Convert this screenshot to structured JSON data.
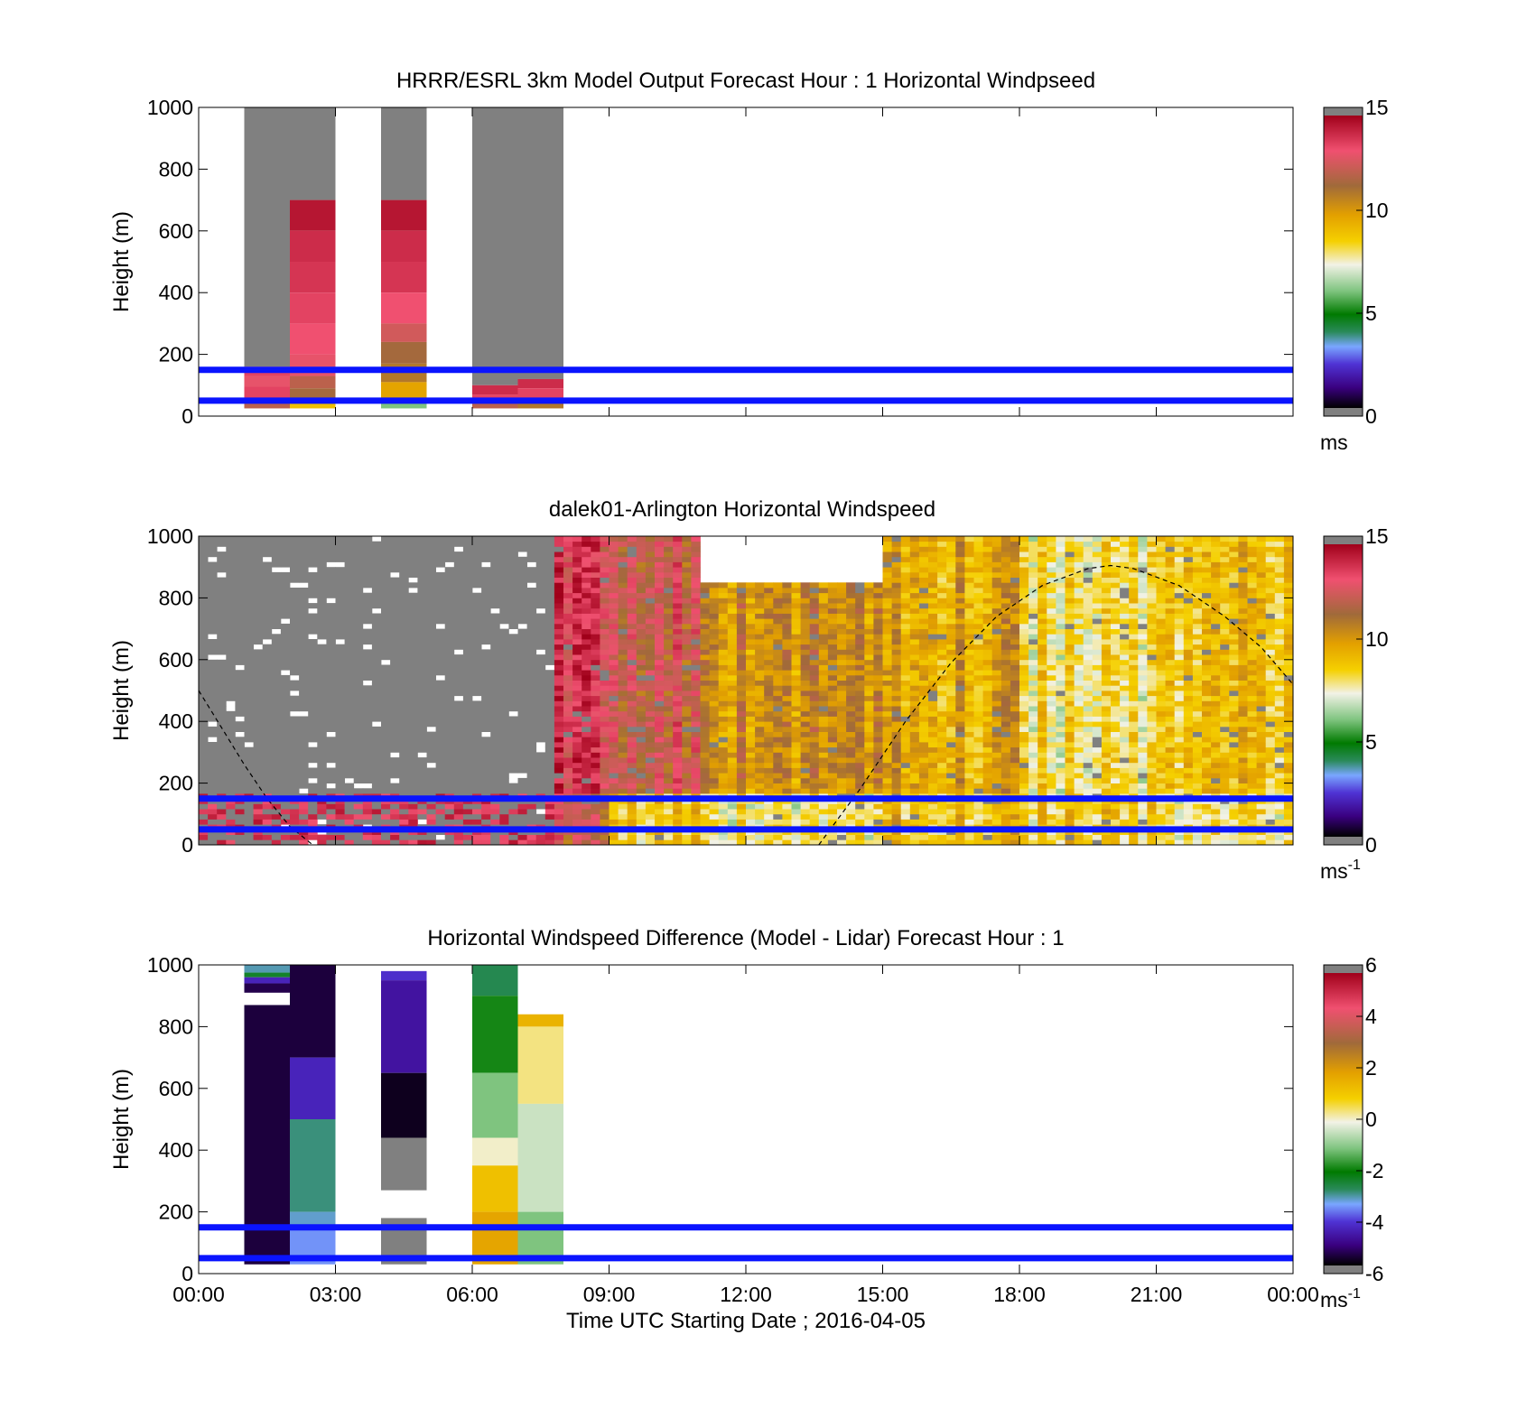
{
  "figure": {
    "xlabel": "Time UTC  Starting Date ; 2016-04-05",
    "xticks": [
      "00:00",
      "03:00",
      "06:00",
      "09:00",
      "12:00",
      "15:00",
      "18:00",
      "21:00",
      "00:00"
    ]
  },
  "chart_data": [
    {
      "type": "heatmap",
      "title": "HRRR/ESRL 3km Model Output   Forecast Hour : 1 Horizontal Windpseed",
      "ylabel": "Height (m)",
      "ylim": [
        0,
        1000
      ],
      "yticks": [
        0,
        200,
        400,
        600,
        800,
        1000
      ],
      "xlim_hours": [
        0,
        24
      ],
      "colorbar": {
        "range": [
          0,
          15
        ],
        "ticks": [
          0,
          5,
          10,
          15
        ],
        "unit": "ms",
        "unit_sup": ""
      },
      "reference_lines_m": [
        50,
        150
      ],
      "columns": [
        {
          "t0": 1.0,
          "t1": 2.0,
          "segments": [
            {
              "z0": 160,
              "z1": 1000,
              "v": "nodata"
            },
            {
              "z0": 130,
              "z1": 160,
              "v": 13.5
            },
            {
              "z0": 95,
              "z1": 130,
              "v": 13.0
            },
            {
              "z0": 55,
              "z1": 95,
              "v": 13.5
            },
            {
              "z0": 25,
              "z1": 55,
              "v": 12.0
            }
          ]
        },
        {
          "t0": 2.0,
          "t1": 3.0,
          "segments": [
            {
              "z0": 700,
              "z1": 1000,
              "v": "nodata"
            },
            {
              "z0": 600,
              "z1": 700,
              "v": 14.5
            },
            {
              "z0": 500,
              "z1": 600,
              "v": 14.0
            },
            {
              "z0": 400,
              "z1": 500,
              "v": 13.8
            },
            {
              "z0": 300,
              "z1": 400,
              "v": 13.5
            },
            {
              "z0": 200,
              "z1": 300,
              "v": 13.2
            },
            {
              "z0": 130,
              "z1": 200,
              "v": 13.0
            },
            {
              "z0": 90,
              "z1": 130,
              "v": 12.0
            },
            {
              "z0": 55,
              "z1": 90,
              "v": 11.5
            },
            {
              "z0": 25,
              "z1": 55,
              "v": 9.0
            }
          ]
        },
        {
          "t0": 4.0,
          "t1": 5.0,
          "segments": [
            {
              "z0": 700,
              "z1": 1000,
              "v": "nodata"
            },
            {
              "z0": 600,
              "z1": 700,
              "v": 14.5
            },
            {
              "z0": 500,
              "z1": 600,
              "v": 14.0
            },
            {
              "z0": 400,
              "z1": 500,
              "v": 13.8
            },
            {
              "z0": 300,
              "z1": 400,
              "v": 13.2
            },
            {
              "z0": 240,
              "z1": 300,
              "v": 12.5
            },
            {
              "z0": 170,
              "z1": 240,
              "v": 11.5
            },
            {
              "z0": 110,
              "z1": 170,
              "v": 11.0
            },
            {
              "z0": 55,
              "z1": 110,
              "v": 9.8
            },
            {
              "z0": 25,
              "z1": 55,
              "v": 6.0
            }
          ]
        },
        {
          "t0": 6.0,
          "t1": 7.0,
          "segments": [
            {
              "z0": 100,
              "z1": 1000,
              "v": "nodata"
            },
            {
              "z0": 70,
              "z1": 100,
              "v": 14.0
            },
            {
              "z0": 45,
              "z1": 70,
              "v": 13.5
            },
            {
              "z0": 25,
              "z1": 45,
              "v": 12.0
            }
          ]
        },
        {
          "t0": 7.0,
          "t1": 8.0,
          "segments": [
            {
              "z0": 120,
              "z1": 1000,
              "v": "nodata"
            },
            {
              "z0": 90,
              "z1": 120,
              "v": 14.0
            },
            {
              "z0": 55,
              "z1": 90,
              "v": 13.5
            },
            {
              "z0": 25,
              "z1": 55,
              "v": 11.0
            }
          ]
        }
      ]
    },
    {
      "type": "heatmap",
      "title": "dalek01-Arlington  Horizontal Windspeed",
      "ylabel": "Height (m)",
      "ylim": [
        0,
        1000
      ],
      "yticks": [
        0,
        200,
        400,
        600,
        800,
        1000
      ],
      "xlim_hours": [
        0,
        24
      ],
      "colorbar": {
        "range": [
          0,
          15
        ],
        "ticks": [
          0,
          5,
          10,
          15
        ],
        "unit": "ms",
        "unit_sup": "-1"
      },
      "reference_lines_m": [
        50,
        150
      ],
      "dashed_curves": [
        {
          "points": [
            [
              0.0,
              500
            ],
            [
              0.5,
              380
            ],
            [
              1.0,
              260
            ],
            [
              1.5,
              150
            ],
            [
              2.0,
              60
            ],
            [
              2.5,
              0
            ]
          ]
        },
        {
          "points": [
            [
              13.6,
              0
            ],
            [
              14.5,
              180
            ],
            [
              15.5,
              400
            ],
            [
              16.5,
              590
            ],
            [
              17.5,
              740
            ],
            [
              18.5,
              840
            ],
            [
              19.5,
              895
            ],
            [
              20.0,
              905
            ],
            [
              20.5,
              895
            ],
            [
              21.5,
              840
            ],
            [
              22.5,
              740
            ],
            [
              23.3,
              640
            ],
            [
              24.0,
              520
            ]
          ]
        }
      ],
      "time_series": [
        {
          "t0": 0.0,
          "t1": 7.8,
          "top_m": 1000,
          "base_ms": "nodata",
          "low_level_ms": 13.8
        },
        {
          "t0": 7.8,
          "t1": 9.0,
          "top_m": 1000,
          "base_ms": 13.5,
          "low_level_ms": 12.0
        },
        {
          "t0": 9.0,
          "t1": 11.0,
          "top_m": 1000,
          "base_ms": 12.5,
          "low_level_ms": 9.0
        },
        {
          "t0": 11.0,
          "t1": 15.0,
          "top_m": 850,
          "base_ms": 10.5,
          "low_level_ms": 8.0
        },
        {
          "t0": 15.0,
          "t1": 18.0,
          "top_m": 1000,
          "base_ms": 9.8,
          "low_level_ms": 9.0
        },
        {
          "t0": 18.0,
          "t1": 21.0,
          "top_m": 1000,
          "base_ms": 8.0,
          "low_level_ms": 8.5
        },
        {
          "t0": 21.0,
          "t1": 24.0,
          "top_m": 1000,
          "base_ms": 9.0,
          "low_level_ms": 8.0
        }
      ]
    },
    {
      "type": "heatmap",
      "title": "Horizontal Windspeed Difference (Model - Lidar) Forecast Hour : 1",
      "ylabel": "Height (m)",
      "ylim": [
        0,
        1000
      ],
      "yticks": [
        0,
        200,
        400,
        600,
        800,
        1000
      ],
      "xlim_hours": [
        0,
        24
      ],
      "colorbar": {
        "range": [
          -6,
          6
        ],
        "ticks": [
          -6,
          -4,
          -2,
          0,
          2,
          4,
          6
        ],
        "unit": "ms",
        "unit_sup": "-1"
      },
      "reference_lines_m": [
        50,
        150
      ],
      "columns": [
        {
          "t0": 1.0,
          "t1": 2.0,
          "segments": [
            {
              "z0": 975,
              "z1": 1000,
              "v": -3.2
            },
            {
              "z0": 960,
              "z1": 975,
              "v": -2.5
            },
            {
              "z0": 940,
              "z1": 960,
              "v": -4.5
            },
            {
              "z0": 910,
              "z1": 940,
              "v": -5.5
            },
            {
              "z0": 870,
              "z1": 910,
              "v": "blank"
            },
            {
              "z0": 30,
              "z1": 870,
              "v": -5.6
            }
          ]
        },
        {
          "t0": 2.0,
          "t1": 3.0,
          "segments": [
            {
              "z0": 700,
              "z1": 1000,
              "v": -5.6
            },
            {
              "z0": 500,
              "z1": 700,
              "v": -4.5
            },
            {
              "z0": 200,
              "z1": 500,
              "v": -3.0
            },
            {
              "z0": 150,
              "z1": 200,
              "v": -3.3
            },
            {
              "z0": 30,
              "z1": 150,
              "v": -3.6
            }
          ]
        },
        {
          "t0": 4.0,
          "t1": 5.0,
          "segments": [
            {
              "z0": 950,
              "z1": 980,
              "v": -4.3
            },
            {
              "z0": 650,
              "z1": 950,
              "v": -4.8
            },
            {
              "z0": 440,
              "z1": 650,
              "v": -5.8
            },
            {
              "z0": 270,
              "z1": 440,
              "v": "nodata"
            },
            {
              "z0": 180,
              "z1": 270,
              "v": "blank"
            },
            {
              "z0": 30,
              "z1": 180,
              "v": "nodata"
            }
          ]
        },
        {
          "t0": 6.0,
          "t1": 7.0,
          "segments": [
            {
              "z0": 900,
              "z1": 1000,
              "v": -2.8
            },
            {
              "z0": 650,
              "z1": 900,
              "v": -2.0
            },
            {
              "z0": 440,
              "z1": 650,
              "v": -1.2
            },
            {
              "z0": 350,
              "z1": 440,
              "v": 0.0
            },
            {
              "z0": 200,
              "z1": 350,
              "v": 1.2
            },
            {
              "z0": 30,
              "z1": 200,
              "v": 1.8
            }
          ]
        },
        {
          "t0": 7.0,
          "t1": 8.0,
          "segments": [
            {
              "z0": 800,
              "z1": 840,
              "v": 1.5
            },
            {
              "z0": 550,
              "z1": 800,
              "v": 0.3
            },
            {
              "z0": 200,
              "z1": 550,
              "v": -0.5
            },
            {
              "z0": 30,
              "z1": 200,
              "v": -1.2
            }
          ]
        }
      ]
    }
  ]
}
